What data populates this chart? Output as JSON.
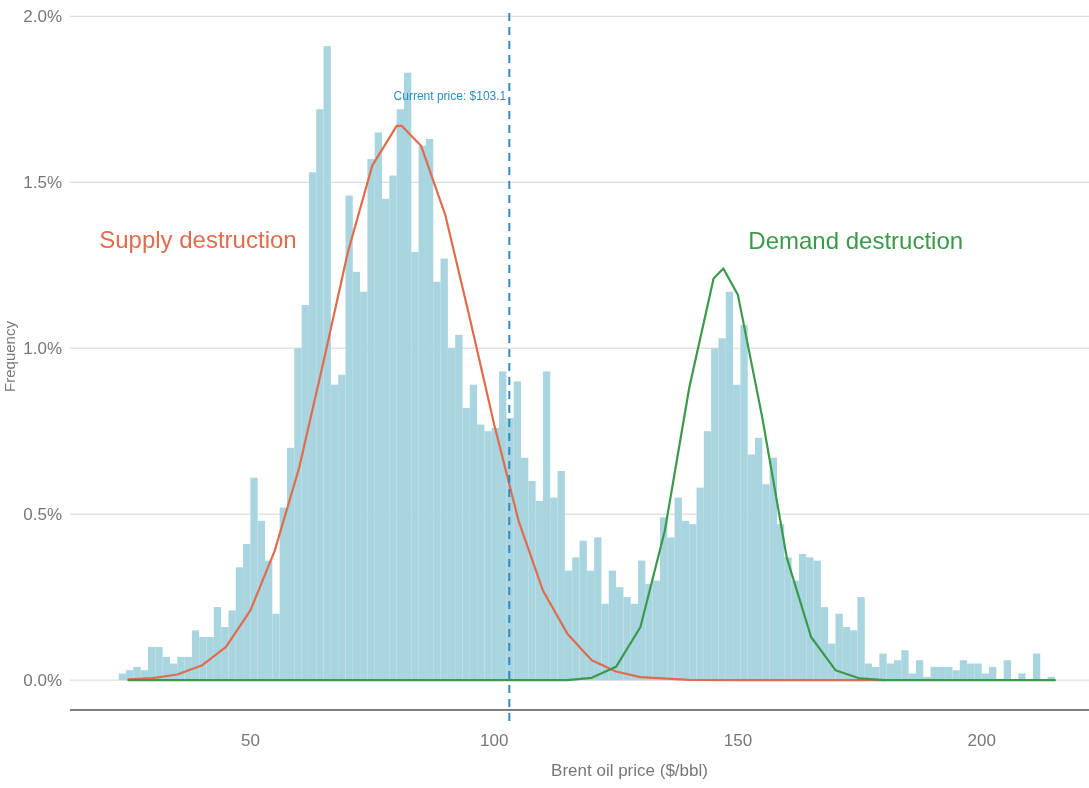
{
  "chart_data": {
    "type": "histogram",
    "xlabel": "Brent oil price ($/bbl)",
    "ylabel": "Frequency",
    "bins": [
      23,
      24.5,
      26,
      27.5,
      29,
      30.5,
      32,
      33.5,
      35,
      36.5,
      38,
      39.5,
      41,
      42.5,
      44,
      45.5,
      47,
      48.5,
      50,
      51.5,
      53,
      54.5,
      56,
      57.5,
      59,
      60.5,
      62,
      63.5,
      65,
      66.5,
      68,
      69.5,
      71,
      72.5,
      74,
      75.5,
      77,
      78.5,
      80,
      81.5,
      83,
      84.5,
      86,
      87.5,
      89,
      90.5,
      92,
      93.5,
      95,
      96.5,
      98,
      99.5,
      101,
      102.5,
      104,
      105.5,
      107,
      108.5,
      110,
      111.5,
      113,
      114.5,
      116,
      117.5,
      119,
      120.5,
      122,
      123.5,
      125,
      126.5,
      128,
      129.5,
      131,
      132.5,
      134,
      135.5,
      137,
      138.5,
      140,
      141.5,
      143,
      144.5,
      146,
      147.5,
      149,
      150.5,
      152,
      153.5,
      155,
      156.5,
      158,
      159.5,
      161,
      162.5,
      164,
      165.5,
      167,
      168.5,
      170,
      171.5,
      173,
      174.5,
      176,
      177.5,
      179,
      180.5,
      182,
      183.5,
      185,
      186.5,
      188,
      189.5,
      191,
      192.5,
      194,
      195.5,
      197,
      198.5,
      200,
      201.5,
      203,
      204.5,
      206,
      207.5,
      209,
      210.5,
      212,
      213.5,
      215
    ],
    "series": [
      {
        "color": "#a8d5e0",
        "values": [
          0.02,
          0.03,
          0.04,
          0.03,
          0.1,
          0.1,
          0.07,
          0.05,
          0.07,
          0.07,
          0.15,
          0.13,
          0.13,
          0.22,
          0.16,
          0.21,
          0.34,
          0.41,
          0.61,
          0.48,
          0.36,
          0.2,
          0.52,
          0.7,
          1.0,
          1.13,
          1.53,
          1.72,
          1.91,
          0.89,
          0.92,
          1.46,
          1.23,
          1.17,
          1.57,
          1.65,
          1.45,
          1.52,
          1.72,
          1.83,
          1.29,
          1.61,
          1.63,
          1.2,
          1.27,
          1.0,
          1.04,
          0.82,
          0.89,
          0.77,
          0.75,
          0.76,
          0.93,
          0.79,
          0.9,
          0.67,
          0.6,
          0.54,
          0.93,
          0.55,
          0.63,
          0.33,
          0.37,
          0.42,
          0.33,
          0.43,
          0.23,
          0.33,
          0.28,
          0.25,
          0.23,
          0.36,
          0.29,
          0.3,
          0.49,
          0.43,
          0.55,
          0.48,
          0.47,
          0.58,
          0.75,
          1.0,
          1.03,
          1.17,
          0.89,
          1.07,
          0.68,
          0.73,
          0.59,
          0.67,
          0.47,
          0.37,
          0.3,
          0.38,
          0.37,
          0.36,
          0.22,
          0.11,
          0.2,
          0.16,
          0.15,
          0.25,
          0.05,
          0.04,
          0.08,
          0.05,
          0.06,
          0.09,
          0.02,
          0.06,
          0.01,
          0.04,
          0.04,
          0.04,
          0.03,
          0.06,
          0.05,
          0.05,
          0.02,
          0.04,
          0,
          0.06,
          0,
          0.02,
          0,
          0.08,
          0,
          0.01
        ]
      },
      {
        "type": "line",
        "name": "Supply destruction",
        "color": "#e06c4c",
        "x": [
          25,
          30,
          35,
          40,
          45,
          50,
          55,
          60,
          65,
          70,
          75,
          80,
          81,
          85,
          90,
          95,
          100,
          105,
          110,
          115,
          120,
          125,
          130,
          140,
          150,
          180
        ],
        "values": [
          0.002,
          0.006,
          0.017,
          0.044,
          0.1,
          0.21,
          0.39,
          0.64,
          0.96,
          1.29,
          1.55,
          1.67,
          1.67,
          1.61,
          1.4,
          1.09,
          0.77,
          0.48,
          0.27,
          0.14,
          0.06,
          0.026,
          0.009,
          0.001,
          0,
          0
        ]
      },
      {
        "type": "line",
        "name": "Demand destruction",
        "color": "#3a9a4a",
        "x": [
          25,
          115,
          120,
          125,
          130,
          135,
          140,
          145,
          147,
          150,
          155,
          160,
          165,
          170,
          175,
          180,
          215
        ],
        "values": [
          0,
          0,
          0.007,
          0.04,
          0.16,
          0.45,
          0.88,
          1.21,
          1.24,
          1.16,
          0.79,
          0.37,
          0.13,
          0.03,
          0.005,
          0,
          0
        ]
      }
    ],
    "xlim": [
      13,
      222
    ],
    "xticks": [
      50,
      100,
      150,
      200
    ],
    "ylim": [
      -0.09,
      2.04
    ],
    "yticks": [
      {
        "value": 0,
        "label": "0.0%"
      },
      {
        "value": 0.5,
        "label": "0.5%"
      },
      {
        "value": 1,
        "label": "1.0%"
      },
      {
        "value": 1.5,
        "label": "1.5%"
      },
      {
        "value": 2,
        "label": "2.0%"
      }
    ],
    "grid": "y",
    "ref_lines": [
      {
        "axis": "x",
        "value": 103.1,
        "label": "Current price: $103.1",
        "color": "#2f8cc0",
        "line_style": "dashed"
      }
    ]
  }
}
